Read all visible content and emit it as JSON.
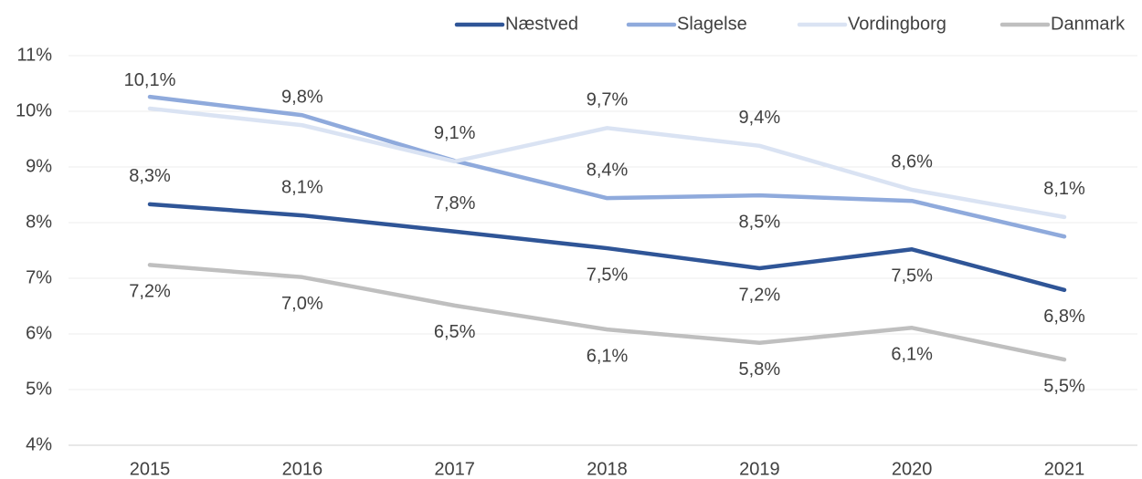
{
  "chart_data": {
    "type": "line",
    "x": [
      "2015",
      "2016",
      "2017",
      "2018",
      "2019",
      "2020",
      "2021"
    ],
    "series": [
      {
        "name": "Næstved",
        "color": "#2f5597",
        "values": [
          8.33,
          8.13,
          7.84,
          7.54,
          7.18,
          7.52,
          6.79
        ],
        "value_labels": [
          "8,3%",
          "8,1%",
          "7,8%",
          "7,5%",
          "7,2%",
          "7,5%",
          "6,8%"
        ]
      },
      {
        "name": "Slagelse",
        "color": "#8faadc",
        "values": [
          10.26,
          9.93,
          9.11,
          8.44,
          8.49,
          8.39,
          7.75
        ],
        "value_labels": [
          null,
          null,
          null,
          "8,4%",
          "8,5%",
          null,
          null
        ]
      },
      {
        "name": "Vordingborg",
        "color": "#dae3f3",
        "values": [
          10.05,
          9.75,
          9.1,
          9.7,
          9.38,
          8.59,
          8.1
        ],
        "value_labels": [
          "10,1%",
          "9,8%",
          "9,1%",
          "9,7%",
          "9,4%",
          "8,6%",
          "8,1%"
        ]
      },
      {
        "name": "Danmark",
        "color": "#bfbfbf",
        "values": [
          7.24,
          7.02,
          6.51,
          6.08,
          5.84,
          6.11,
          5.54
        ],
        "value_labels": [
          "7,2%",
          "7,0%",
          "6,5%",
          "6,1%",
          "5,8%",
          "6,1%",
          "5,5%"
        ]
      }
    ],
    "ylim": [
      4,
      11
    ],
    "yticks": [
      {
        "value": 4,
        "label": "4%"
      },
      {
        "value": 5,
        "label": "5%"
      },
      {
        "value": 6,
        "label": "6%"
      },
      {
        "value": 7,
        "label": "7%"
      },
      {
        "value": 8,
        "label": "8%"
      },
      {
        "value": 9,
        "label": "9%"
      },
      {
        "value": 10,
        "label": "10%"
      },
      {
        "value": 11,
        "label": "11%"
      }
    ],
    "grid": true,
    "legend": "top"
  }
}
